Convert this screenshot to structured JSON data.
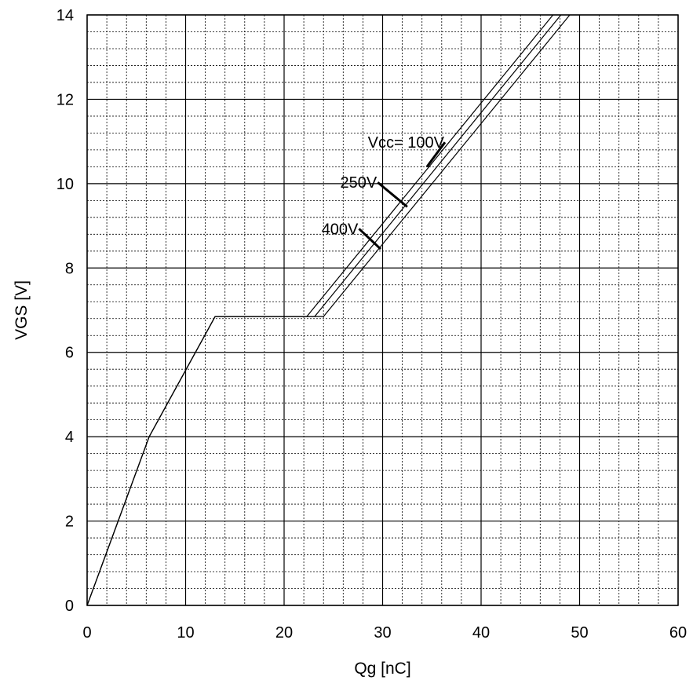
{
  "chart_data": {
    "type": "line",
    "title": "",
    "xlabel": "Qg [nC]",
    "ylabel": "VGS [V]",
    "xlim": [
      0,
      60
    ],
    "ylim": [
      0,
      14
    ],
    "x_ticks": [
      0,
      10,
      20,
      30,
      40,
      50,
      60
    ],
    "y_ticks": [
      0,
      2,
      4,
      6,
      8,
      10,
      12,
      14
    ],
    "x_minor_step": 2,
    "y_minor_step": 0.4,
    "grid": true,
    "legend": "none",
    "series": [
      {
        "name": "Vcc= 100V",
        "x": [
          0,
          6.3,
          13,
          22.3,
          47.3
        ],
        "y": [
          0,
          4,
          6.85,
          6.85,
          14
        ]
      },
      {
        "name": "250V",
        "x": [
          0,
          6.3,
          13,
          23.1,
          48.1
        ],
        "y": [
          0,
          4,
          6.85,
          6.85,
          14
        ]
      },
      {
        "name": "400V",
        "x": [
          0,
          6.3,
          13,
          24.0,
          49.0
        ],
        "y": [
          0,
          4,
          6.85,
          6.85,
          14
        ]
      }
    ],
    "annotations": [
      {
        "text": "Vcc= 100V",
        "x": 28.5,
        "y": 10.85,
        "arrow_to": [
          34.5,
          10.4
        ],
        "series": 0
      },
      {
        "text": "250V",
        "x": 25.7,
        "y": 9.9,
        "arrow_to": [
          32.5,
          9.45
        ],
        "series": 1
      },
      {
        "text": "400V",
        "x": 23.8,
        "y": 8.8,
        "arrow_to": [
          29.8,
          8.45
        ],
        "series": 2
      }
    ]
  }
}
